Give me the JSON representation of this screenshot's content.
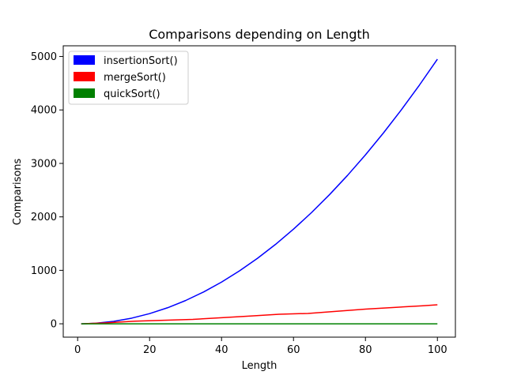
{
  "chart_data": {
    "type": "line",
    "title": "Comparisons depending on Length",
    "xlabel": "Length",
    "ylabel": "Comparisons",
    "xlim": [
      -4,
      105
    ],
    "ylim": [
      -250,
      5200
    ],
    "xticks": [
      0,
      20,
      40,
      60,
      80,
      100
    ],
    "yticks": [
      0,
      1000,
      2000,
      3000,
      4000,
      5000
    ],
    "grid": false,
    "legend_position": "top-left",
    "series": [
      {
        "name": "insertionSort()",
        "color": "#0000ff",
        "x": [
          1,
          5,
          10,
          15,
          20,
          25,
          30,
          35,
          40,
          45,
          50,
          55,
          60,
          65,
          70,
          75,
          80,
          85,
          90,
          95,
          100
        ],
        "y": [
          0,
          10,
          45,
          105,
          190,
          300,
          435,
          595,
          780,
          990,
          1225,
          1485,
          1770,
          2080,
          2415,
          2775,
          3160,
          3570,
          4005,
          4465,
          4950
        ]
      },
      {
        "name": "mergeSort()",
        "color": "#ff0000",
        "x": [
          1,
          8,
          16,
          24,
          32,
          40,
          48,
          56,
          64,
          72,
          80,
          88,
          96,
          100
        ],
        "y": [
          0,
          17,
          49,
          66,
          82,
          114,
          146,
          178,
          194,
          234,
          274,
          306,
          338,
          356
        ]
      },
      {
        "name": "quickSort()",
        "color": "#008000",
        "x": [
          1,
          20,
          40,
          60,
          80,
          100
        ],
        "y": [
          0,
          0,
          0,
          0,
          0,
          0
        ]
      }
    ]
  }
}
